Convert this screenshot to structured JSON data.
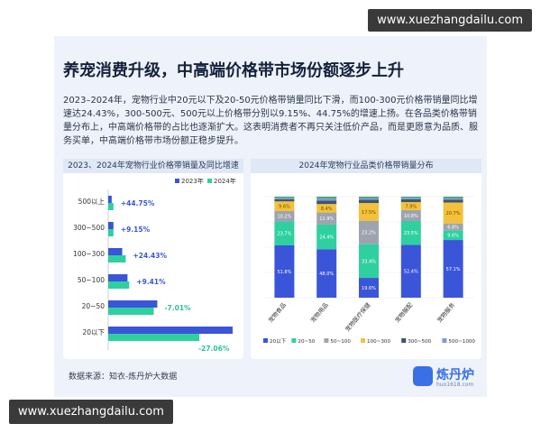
{
  "header": {
    "title": "养宠消费升级，中高端价格带市场份额逐步上升",
    "description": "2023–2024年，宠物行业中20元以下及20-50元价格带销量同比下滑，而100-300元价格带销量同比增速达24.43%，300-500元、500元以上价格带分别以9.15%、44.75%的增速上扬。在各品类价格带销量分布上，中高端价格带的占比也逐渐扩大。这表明消费者不再只关注低价产品，而是更愿意为品质、服务买单，中高端价格带市场份额正稳步提升。"
  },
  "footer": {
    "source": "数据来源：知衣-炼丹炉大数据",
    "logo_text": "炼丹炉",
    "logo_sub": "huo1618.com"
  },
  "watermark": {
    "top": "www.xuezhangdailu.com",
    "bottom": "www.xuezhangdailu.com"
  },
  "colors": {
    "y2023": "#3b55d9",
    "y2024": "#2fd0a0",
    "positive": "#3b55d9",
    "negative": "#2fbf9b",
    "stack": [
      "#3b55d9",
      "#2fd0a0",
      "#9ea3b0",
      "#f3c13a",
      "#3f5472",
      "#7f9bd1",
      "#35a96c"
    ]
  },
  "chart_data": [
    {
      "type": "bar",
      "orientation": "horizontal",
      "title": "2023、2024年宠物行业价格带销量及同比增速",
      "categories": [
        "500以上",
        "300~500",
        "100~300",
        "50~100",
        "20~50",
        "20以下"
      ],
      "series": [
        {
          "name": "2023年",
          "values": [
            2,
            3,
            8,
            11,
            28,
            71
          ]
        },
        {
          "name": "2024年",
          "values": [
            3,
            3,
            10,
            12,
            26,
            52
          ]
        }
      ],
      "growth_labels": [
        "+44.75%",
        "+9.15%",
        "+24.43%",
        "+9.41%",
        "-7.01%",
        "-27.06%"
      ],
      "legend_position": "top-right",
      "grid": false
    },
    {
      "type": "bar",
      "stacked": true,
      "title": "2024年宠物行业品类价格带销量分布",
      "categories": [
        "宠物食品",
        "宠物用品",
        "宠物医疗保健",
        "宠物服配",
        "宠物服务"
      ],
      "series": [
        {
          "name": "20以下",
          "values": [
            51.8,
            48.0,
            19.6,
            52.4,
            57.1
          ]
        },
        {
          "name": "20~50",
          "values": [
            23.7,
            24.4,
            33.4,
            23.5,
            9.6
          ]
        },
        {
          "name": "50~100",
          "values": [
            10.2,
            11.9,
            23.2,
            10.8,
            6.8
          ]
        },
        {
          "name": "100~300",
          "values": [
            9.6,
            8.4,
            17.5,
            7.9,
            20.7
          ]
        },
        {
          "name": "300~500",
          "values": [
            2.0,
            3.5,
            3.3,
            2.8,
            2.9
          ]
        },
        {
          "name": "500~1000",
          "values": [
            1.5,
            2.2,
            1.6,
            1.5,
            1.6
          ]
        },
        {
          "name": "1000以上",
          "values": [
            1.2,
            1.6,
            1.4,
            1.1,
            1.3
          ]
        }
      ],
      "value_labels": [
        [
          "51.8%",
          "23.7%",
          "10.2%",
          "9.6%",
          "",
          "",
          ""
        ],
        [
          "48.0%",
          "24.4%",
          "11.9%",
          "8.4%",
          "",
          "",
          ""
        ],
        [
          "19.6%",
          "33.4%",
          "23.2%",
          "17.5%",
          "",
          "",
          ""
        ],
        [
          "52.4%",
          "23.5%",
          "10.8%",
          "7.9%",
          "",
          "",
          ""
        ],
        [
          "57.1%",
          "9.6%",
          "6.8%",
          "20.7%",
          "",
          "",
          ""
        ]
      ],
      "ylim": [
        0,
        100
      ],
      "legend_position": "bottom",
      "grid": true
    }
  ]
}
